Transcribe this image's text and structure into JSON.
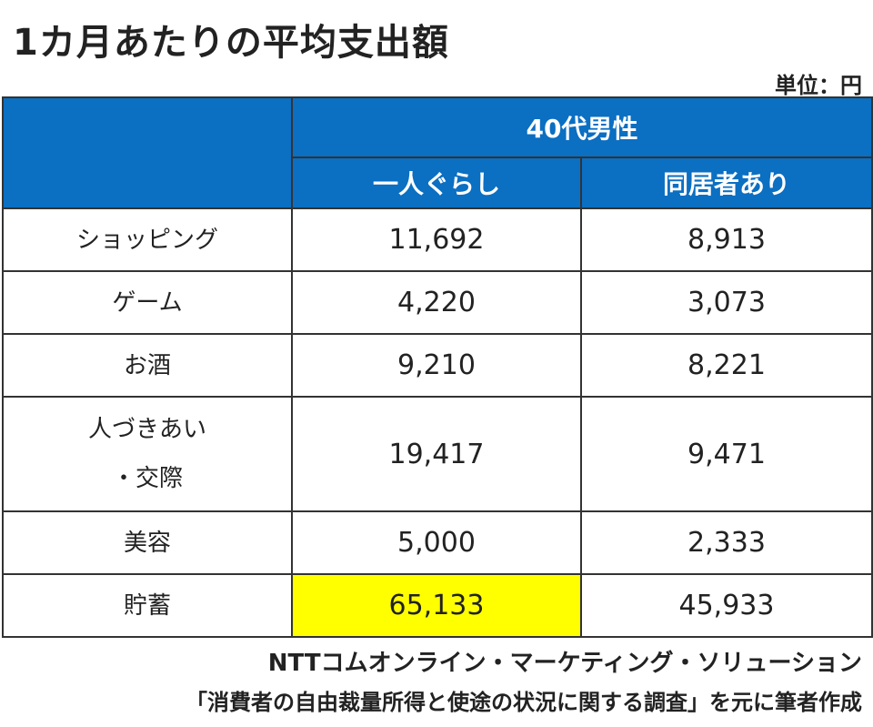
{
  "title": "1カ月あたりの平均支出額",
  "unit_label": "単位：円",
  "header": {
    "group": "40代男性",
    "columns": [
      "一人ぐらし",
      "同居者あり"
    ]
  },
  "rows": [
    {
      "label": "ショッピング",
      "values": [
        "11,692",
        "8,913"
      ]
    },
    {
      "label": "ゲーム",
      "values": [
        "4,220",
        "3,073"
      ]
    },
    {
      "label": "お酒",
      "values": [
        "9,210",
        "8,221"
      ]
    },
    {
      "label": "人づきあい\n・交際",
      "values": [
        "19,417",
        "9,471"
      ]
    },
    {
      "label": "美容",
      "values": [
        "5,000",
        "2,333"
      ]
    },
    {
      "label": "貯蓄",
      "values": [
        "65,133",
        "45,933"
      ]
    }
  ],
  "highlight_color": "#ffff00",
  "header_color": "#0b6fc2",
  "source_line1": "NTTコムオンライン・マーケティング・ソリューション",
  "source_line2": "「消費者の自由裁量所得と使途の状況に関する調査」を元に筆者作成",
  "chart_data": {
    "type": "table",
    "title": "1カ月あたりの平均支出額",
    "unit": "単位：円",
    "group": "40代男性",
    "columns": [
      "一人ぐらし",
      "同居者あり"
    ],
    "categories": [
      "ショッピング",
      "ゲーム",
      "お酒",
      "人づきあい・交際",
      "美容",
      "貯蓄"
    ],
    "series": [
      {
        "name": "一人ぐらし",
        "values": [
          11692,
          4220,
          9210,
          19417,
          5000,
          65133
        ]
      },
      {
        "name": "同居者あり",
        "values": [
          8913,
          3073,
          8221,
          9471,
          2333,
          45933
        ]
      }
    ],
    "highlighted_cell": {
      "category": "貯蓄",
      "series": "一人ぐらし"
    }
  }
}
